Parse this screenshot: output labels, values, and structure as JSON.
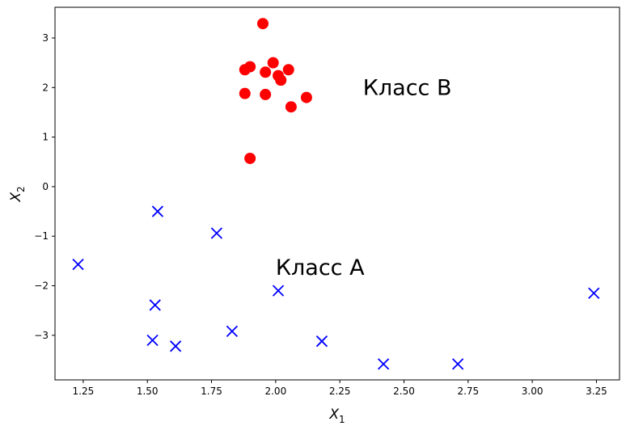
{
  "chart_data": {
    "type": "scatter",
    "xlabel": "X",
    "xlabel_sub": "1",
    "ylabel": "X",
    "ylabel_sub": "2",
    "xlim": [
      1.14,
      3.34
    ],
    "ylim": [
      -3.9,
      3.62
    ],
    "xticks": [
      1.25,
      1.5,
      1.75,
      2.0,
      2.25,
      2.5,
      2.75,
      3.0,
      3.25
    ],
    "xtick_labels": [
      "1.25",
      "1.50",
      "1.75",
      "2.00",
      "2.25",
      "2.50",
      "2.75",
      "3.00",
      "3.25"
    ],
    "yticks": [
      -3,
      -2,
      -1,
      0,
      1,
      2,
      3
    ],
    "ytick_labels": [
      "−3",
      "−2",
      "−1",
      "0",
      "1",
      "2",
      "3"
    ],
    "grid": false,
    "series": [
      {
        "name": "Класс B",
        "marker": "circle",
        "color": "#ff0000",
        "points": [
          [
            1.95,
            3.29
          ],
          [
            1.88,
            2.36
          ],
          [
            1.9,
            2.42
          ],
          [
            1.99,
            2.5
          ],
          [
            1.96,
            2.31
          ],
          [
            2.01,
            2.24
          ],
          [
            2.02,
            2.15
          ],
          [
            2.05,
            2.36
          ],
          [
            1.88,
            1.88
          ],
          [
            1.96,
            1.86
          ],
          [
            2.06,
            1.61
          ],
          [
            2.12,
            1.8
          ],
          [
            1.9,
            0.57
          ]
        ]
      },
      {
        "name": "Класс A",
        "marker": "x",
        "color": "#0000ff",
        "points": [
          [
            1.23,
            -1.57
          ],
          [
            1.54,
            -0.5
          ],
          [
            1.77,
            -0.94
          ],
          [
            1.53,
            -2.39
          ],
          [
            1.52,
            -3.1
          ],
          [
            1.61,
            -3.22
          ],
          [
            1.83,
            -2.92
          ],
          [
            2.01,
            -2.1
          ],
          [
            2.18,
            -3.12
          ],
          [
            2.42,
            -3.58
          ],
          [
            2.71,
            -3.58
          ],
          [
            3.24,
            -2.15
          ]
        ]
      }
    ],
    "annotations": [
      {
        "text": "Класс B",
        "x": 2.34,
        "y": 2.0
      },
      {
        "text": "Класс A",
        "x": 2.0,
        "y": -1.63
      }
    ]
  }
}
